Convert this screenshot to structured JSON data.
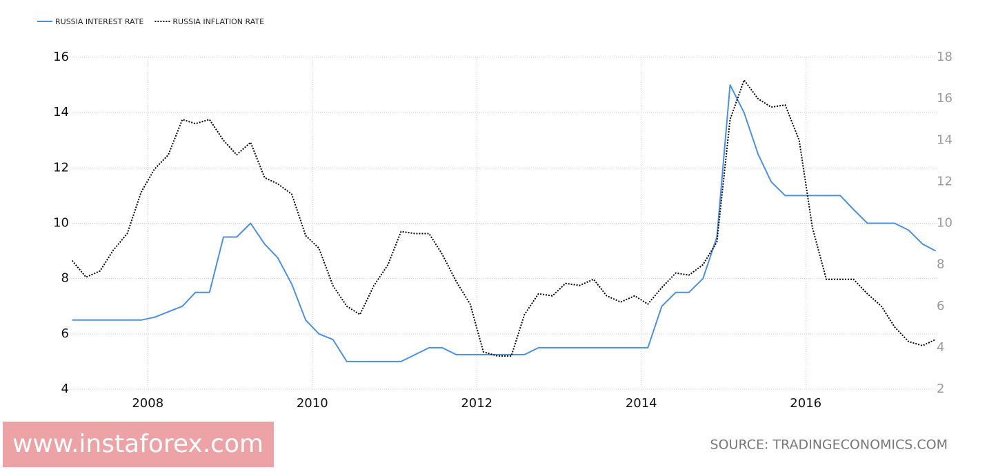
{
  "chart_data": {
    "type": "line",
    "x": [
      2007.08,
      2007.25,
      2007.42,
      2007.58,
      2007.75,
      2007.92,
      2008.08,
      2008.25,
      2008.42,
      2008.58,
      2008.75,
      2008.92,
      2009.08,
      2009.25,
      2009.42,
      2009.58,
      2009.75,
      2009.92,
      2010.08,
      2010.25,
      2010.42,
      2010.58,
      2010.75,
      2010.92,
      2011.08,
      2011.25,
      2011.42,
      2011.58,
      2011.75,
      2011.92,
      2012.08,
      2012.25,
      2012.42,
      2012.58,
      2012.75,
      2012.92,
      2013.08,
      2013.25,
      2013.42,
      2013.58,
      2013.75,
      2013.92,
      2014.08,
      2014.25,
      2014.42,
      2014.58,
      2014.75,
      2014.92,
      2015.08,
      2015.25,
      2015.42,
      2015.58,
      2015.75,
      2015.92,
      2016.08,
      2016.25,
      2016.42,
      2016.58,
      2016.75,
      2016.92,
      2017.08,
      2017.25,
      2017.42,
      2017.58
    ],
    "series": [
      {
        "name": "RUSSIA INTEREST RATE",
        "color": "#4a90e2",
        "axis": "y",
        "values": [
          6.5,
          6.5,
          6.5,
          6.5,
          6.5,
          6.5,
          6.6,
          6.8,
          7.0,
          7.5,
          7.5,
          9.5,
          9.5,
          10.0,
          9.25,
          8.75,
          7.8,
          6.5,
          6.0,
          5.8,
          5.0,
          5.0,
          5.0,
          5.0,
          5.0,
          5.25,
          5.5,
          5.5,
          5.25,
          5.25,
          5.25,
          5.25,
          5.25,
          5.25,
          5.5,
          5.5,
          5.5,
          5.5,
          5.5,
          5.5,
          5.5,
          5.5,
          5.5,
          7.0,
          7.5,
          7.5,
          8.0,
          9.5,
          15.0,
          14.0,
          12.5,
          11.5,
          11.0,
          11.0,
          11.0,
          11.0,
          11.0,
          10.5,
          10.0,
          10.0,
          10.0,
          9.75,
          9.25,
          9.0
        ]
      },
      {
        "name": "RUSSIA INFLATION RATE",
        "color": "#000000",
        "axis": "y2",
        "values": [
          8.2,
          7.4,
          7.7,
          8.7,
          9.5,
          11.5,
          12.6,
          13.3,
          15.0,
          14.8,
          15.0,
          14.0,
          13.3,
          13.9,
          12.2,
          11.9,
          11.4,
          9.4,
          8.8,
          7.0,
          6.0,
          5.6,
          7.0,
          8.0,
          9.6,
          9.5,
          9.5,
          8.5,
          7.2,
          6.1,
          3.8,
          3.6,
          3.6,
          5.6,
          6.6,
          6.5,
          7.1,
          7.0,
          7.3,
          6.5,
          6.2,
          6.5,
          6.1,
          6.9,
          7.6,
          7.5,
          8.0,
          9.1,
          15.0,
          16.9,
          16.0,
          15.6,
          15.7,
          14.0,
          9.8,
          7.3,
          7.3,
          7.3,
          6.6,
          6.0,
          5.0,
          4.3,
          4.1,
          4.4
        ]
      }
    ],
    "xlim": [
      2007.05,
      2017.6
    ],
    "xticks": [
      2008,
      2010,
      2012,
      2014,
      2016
    ],
    "ylim": [
      4,
      16
    ],
    "yticks": [
      4,
      6,
      8,
      10,
      12,
      14,
      16
    ],
    "y2lim": [
      2,
      18
    ],
    "y2ticks": [
      2,
      4,
      6,
      8,
      10,
      12,
      14,
      16,
      18
    ],
    "grid": true,
    "source": "SOURCE: TRADINGECONOMICS.COM",
    "watermark": "[ www.instaforex.com ]"
  }
}
